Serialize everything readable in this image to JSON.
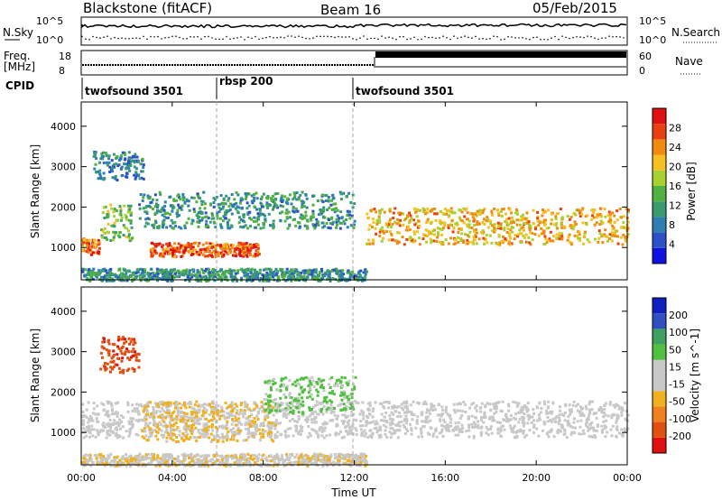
{
  "header": {
    "radar": "Blackstone (fitACF)",
    "beam": "Beam 16",
    "date": "05/Feb/2015"
  },
  "noise_panel": {
    "left_label": "N.Sky",
    "right_label": "N.Search",
    "ticks": [
      "10^5",
      "10^0"
    ]
  },
  "freq_panel": {
    "left_label_1": "Freq.",
    "left_label_2": "[MHz]",
    "left_ticks": [
      "18",
      "8"
    ],
    "right_label": "Nave",
    "right_ticks": [
      "60",
      "0"
    ]
  },
  "cpid_panel": {
    "label": "CPID",
    "segments": [
      {
        "name": "twofsound 3501",
        "start_hour": 0,
        "end_hour": 6
      },
      {
        "name": "rbsp 200",
        "start_hour": 6,
        "end_hour": 12
      },
      {
        "name": "twofsound 3501",
        "start_hour": 12,
        "end_hour": 24
      }
    ]
  },
  "x_axis": {
    "label": "Time UT",
    "ticks": [
      "00:00",
      "04:00",
      "08:00",
      "12:00",
      "16:00",
      "20:00",
      "00:00"
    ]
  },
  "chart_data": [
    {
      "type": "heatmap",
      "quantity": "Power",
      "ylabel": "Slant Range [km]",
      "yticks": [
        "4000",
        "3000",
        "2000",
        "1000"
      ],
      "ylim": [
        200,
        4600
      ],
      "xlim_hours": [
        0,
        24
      ],
      "colorbar": {
        "label": "Power [dB]",
        "ticks": [
          "28",
          "24",
          "20",
          "16",
          "12",
          "8",
          "4"
        ],
        "range": [
          0,
          30
        ],
        "colors": [
          "#1010e0",
          "#2b50c8",
          "#2e7fb0",
          "#3a9a70",
          "#50b040",
          "#a8d030",
          "#f5c020",
          "#f08a10",
          "#e84010",
          "#e01010"
        ]
      },
      "features": [
        {
          "desc": "near-range ionospheric band",
          "start_hour": 0.0,
          "end_hour": 0.8,
          "range_km": [
            850,
            1250
          ],
          "power_db": 24
        },
        {
          "desc": "diagonal rising band",
          "start_hour": 0.8,
          "end_hour": 2.2,
          "range_km": [
            1200,
            2100
          ],
          "power_db": 14
        },
        {
          "desc": "high-range patch",
          "start_hour": 0.5,
          "end_hour": 2.7,
          "range_km": [
            2700,
            3400
          ],
          "power_db": 8
        },
        {
          "desc": "morning strong echoes",
          "start_hour": 3.0,
          "end_hour": 7.8,
          "range_km": [
            800,
            1150
          ],
          "power_db": 25
        },
        {
          "desc": "mid-range band",
          "start_hour": 2.5,
          "end_hour": 12.0,
          "range_km": [
            1500,
            2400
          ],
          "power_db": 10
        },
        {
          "desc": "evening band",
          "start_hour": 12.5,
          "end_hour": 24.0,
          "range_km": [
            1100,
            2000
          ],
          "power_db": 20
        },
        {
          "desc": "ground scatter",
          "start_hour": 0.0,
          "end_hour": 12.5,
          "range_km": [
            200,
            500
          ],
          "power_db": 10
        }
      ]
    },
    {
      "type": "heatmap",
      "quantity": "Velocity",
      "ylabel": "Slant Range [km]",
      "yticks": [
        "4000",
        "3000",
        "2000",
        "1000"
      ],
      "ylim": [
        200,
        4600
      ],
      "xlim_hours": [
        0,
        24
      ],
      "colorbar": {
        "label": "Velocity [m s^-1]",
        "ticks": [
          "200",
          "100",
          "50",
          "15",
          "-15",
          "-50",
          "-100",
          "-200"
        ],
        "range": [
          -250,
          250
        ],
        "colors": [
          "#e01010",
          "#e05010",
          "#f08020",
          "#f0b020",
          "#c8c8c8",
          "#c8c8c8",
          "#50c040",
          "#40a060",
          "#3050c0",
          "#1020c0"
        ]
      },
      "features": [
        {
          "desc": "red patch",
          "start_hour": 0.8,
          "end_hour": 2.5,
          "range_km": [
            2500,
            3400
          ],
          "velocity": -180
        },
        {
          "desc": "grey near-zero band",
          "start_hour": 0.0,
          "end_hour": 24.0,
          "range_km": [
            900,
            1800
          ],
          "velocity": 0
        },
        {
          "desc": "orange morning echoes",
          "start_hour": 2.5,
          "end_hour": 8.5,
          "range_km": [
            800,
            1800
          ],
          "velocity": -60
        },
        {
          "desc": "green-blue band",
          "start_hour": 8.0,
          "end_hour": 12.0,
          "range_km": [
            1500,
            2400
          ],
          "velocity": 60
        },
        {
          "desc": "orange ground scatter",
          "start_hour": 0.0,
          "end_hour": 12.5,
          "range_km": [
            200,
            500
          ],
          "velocity": -40
        }
      ]
    }
  ]
}
